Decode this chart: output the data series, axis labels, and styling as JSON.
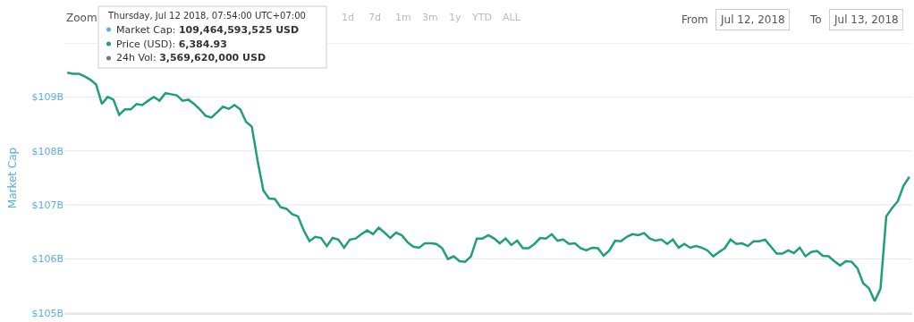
{
  "chart_data": {
    "type": "line",
    "ylabel": "Market Cap",
    "categories": [
      null,
      null,
      null,
      null,
      null,
      null,
      null,
      null,
      null,
      null,
      null,
      null,
      null,
      null,
      null,
      null,
      null,
      null,
      null,
      null,
      null,
      null,
      null,
      null,
      null,
      null,
      null,
      null,
      null,
      null,
      null,
      null,
      null,
      null,
      null,
      null,
      null,
      null,
      null,
      null,
      null,
      null,
      null,
      null,
      null,
      null,
      null,
      null,
      null,
      null,
      null,
      null,
      null,
      null,
      null,
      null,
      null,
      null,
      null,
      null,
      null,
      null,
      null,
      null,
      null,
      null,
      null,
      null,
      null,
      null,
      null,
      null,
      null,
      null,
      null,
      null,
      null,
      null,
      null,
      null,
      null,
      null,
      null,
      null,
      null,
      null,
      null,
      null,
      null,
      null,
      null,
      null,
      null,
      null,
      null,
      null,
      null,
      null,
      null,
      null,
      null,
      null,
      null,
      null,
      null,
      null,
      null,
      null,
      null,
      null,
      null,
      null,
      null,
      null,
      null,
      null,
      null,
      null,
      null,
      null,
      null,
      null,
      null,
      null,
      null,
      null,
      null,
      null,
      null,
      null,
      null,
      null,
      null,
      null,
      null,
      null,
      null,
      null,
      null,
      null,
      null,
      null,
      null,
      null,
      null,
      null,
      null
    ],
    "series": [
      {
        "color": "#1f9e7c",
        "values": [
          109.45,
          109.43,
          109.43,
          109.38,
          109.32,
          109.23,
          108.87,
          109.0,
          108.95,
          108.67,
          108.77,
          108.77,
          108.87,
          108.85,
          108.93,
          109.0,
          108.93,
          109.07,
          109.05,
          109.03,
          108.93,
          108.95,
          108.87,
          108.77,
          108.65,
          108.62,
          108.72,
          108.82,
          108.78,
          108.85,
          108.77,
          108.54,
          108.45,
          107.82,
          107.27,
          107.12,
          107.11,
          106.96,
          106.93,
          106.83,
          106.79,
          106.53,
          106.33,
          106.41,
          106.39,
          106.24,
          106.39,
          106.36,
          106.21,
          106.36,
          106.38,
          106.46,
          106.53,
          106.46,
          106.58,
          106.49,
          106.39,
          106.49,
          106.44,
          106.31,
          106.23,
          106.21,
          106.29,
          106.29,
          106.28,
          106.2,
          106.0,
          106.05,
          105.96,
          105.95,
          106.05,
          106.38,
          106.38,
          106.44,
          106.38,
          106.29,
          106.38,
          106.26,
          106.34,
          106.2,
          106.2,
          106.28,
          106.39,
          106.38,
          106.46,
          106.34,
          106.36,
          106.28,
          106.29,
          106.2,
          106.16,
          106.21,
          106.2,
          106.06,
          106.16,
          106.34,
          106.33,
          106.41,
          106.46,
          106.44,
          106.48,
          106.38,
          106.34,
          106.36,
          106.28,
          106.36,
          106.21,
          106.28,
          106.21,
          106.24,
          106.21,
          106.16,
          106.05,
          106.13,
          106.2,
          106.36,
          106.28,
          106.29,
          106.24,
          106.33,
          106.33,
          106.36,
          106.23,
          106.1,
          106.1,
          106.16,
          106.11,
          106.21,
          106.05,
          106.13,
          106.15,
          106.06,
          106.05,
          105.96,
          105.88,
          105.96,
          105.95,
          105.83,
          105.55,
          105.46,
          105.22,
          105.45,
          106.79,
          106.94,
          107.07,
          107.36,
          107.52
        ]
      }
    ],
    "ylim": [
      105,
      110
    ],
    "yticks": [
      {
        "value": 105,
        "label": "$105B"
      },
      {
        "value": 106,
        "label": "$106B"
      },
      {
        "value": 107,
        "label": "$107B"
      },
      {
        "value": 108,
        "label": "$108B"
      },
      {
        "value": 109,
        "label": "$109B"
      },
      {
        "value": 110,
        "label": null
      }
    ],
    "grid": "y",
    "annotations": [
      "Zoom",
      "1d",
      "7d",
      "1m",
      "3m",
      "1y",
      "YTD",
      "ALL",
      "From",
      "Jul 12, 2018",
      "To",
      "Jul 13, 2018",
      "Thursday, Jul 12 2018, 07:54:00 UTC+07:00",
      "Market Cap: 109,464,593,525 USD",
      "Price (USD): 6,384.93",
      "24h Vol: 3,569,620,000 USD"
    ]
  }
}
